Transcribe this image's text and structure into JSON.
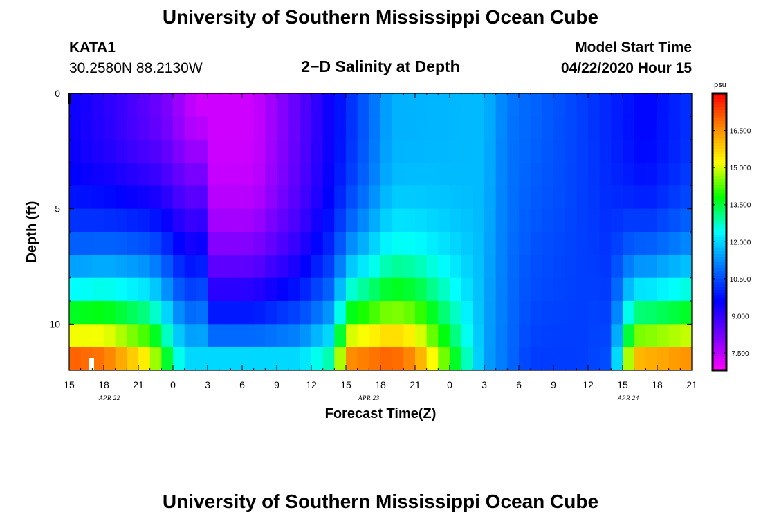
{
  "header": {
    "title": "University of Southern Mississippi Ocean Cube",
    "station_id": "KATA1",
    "coordinates": "30.2580N 88.2130W",
    "plot_title": "2−D Salinity at Depth",
    "model_start_label": "Model Start Time",
    "model_start_value": "04/22/2020 Hour 15"
  },
  "footer": {
    "title": "University of Southern Mississippi Ocean Cube"
  },
  "colors": {
    "colormap": [
      "#ff00ff",
      "#7700ff",
      "#0000ff",
      "#0077ff",
      "#00ffff",
      "#00ff00",
      "#ffff00",
      "#ff8800",
      "#ff0000"
    ]
  },
  "chart_data": {
    "type": "heatmap",
    "title": "2−D Salinity at Depth",
    "xlabel": "Forecast Time(Z)",
    "ylabel": "Depth (ft)",
    "units": "psu",
    "x_start_hour": 15,
    "x_hours": 54,
    "x_ticks": [
      "15",
      "18",
      "21",
      "0",
      "3",
      "6",
      "9",
      "12",
      "15",
      "18",
      "21",
      "0",
      "3",
      "6",
      "9",
      "12",
      "15",
      "18",
      "21"
    ],
    "date_labels": [
      {
        "label": "APR 22",
        "hour": 18.5
      },
      {
        "label": "APR 23",
        "hour": 41
      },
      {
        "label": "APR 24",
        "hour": 63.5
      }
    ],
    "depth_range": [
      0,
      12
    ],
    "y_ticks": [
      "0",
      "5",
      "10"
    ],
    "depth_levels": 12,
    "value_range": [
      6.8,
      18.0
    ],
    "colorbar_ticks": [
      "7.500",
      "9.000",
      "10.500",
      "12.000",
      "13.500",
      "15.000",
      "16.500"
    ],
    "colorbar_values": [
      7.5,
      9.0,
      10.5,
      12.0,
      13.5,
      15.0,
      16.5
    ],
    "colorbar_unit": "psu",
    "field_model": "estimated from image: surface layer fresh (~7.5 psu) near hour 30, 11-12 psu around hours 40-48, ~10.3 psu near hour 56; bottom layer saltier (~17 psu) toward hours 15-18, 40-46 and 68-69, with fronts near hours 22-24 and 47-49"
  }
}
